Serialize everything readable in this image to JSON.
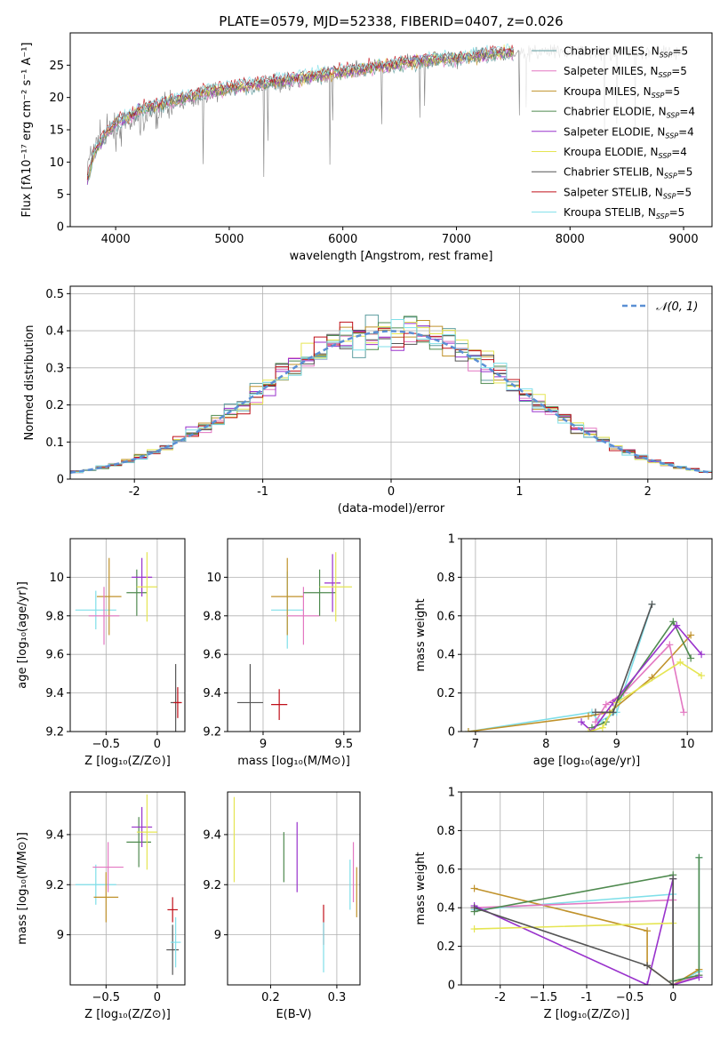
{
  "figure_title": "PLATE=0579, MJD=52338, FIBERID=0407, z=0.026",
  "colors": {
    "series": [
      "#5f9ea0",
      "#e377c2",
      "#c0922b",
      "#4f8a4f",
      "#9932cc",
      "#e5e552",
      "#555555",
      "#c0101a",
      "#7fdfe9"
    ],
    "nd_line": "#5a8fd4",
    "grid": "#b0b0b0"
  },
  "spectrum_legend": [
    {
      "name": "Chabrier MILES",
      "nssp": "5"
    },
    {
      "name": "Salpeter MILES",
      "nssp": "5"
    },
    {
      "name": "Kroupa MILES",
      "nssp": "5"
    },
    {
      "name": "Chabrier ELODIE",
      "nssp": "4"
    },
    {
      "name": "Salpeter ELODIE",
      "nssp": "4"
    },
    {
      "name": "Kroupa ELODIE",
      "nssp": "4"
    },
    {
      "name": "Chabrier STELIB",
      "nssp": "5"
    },
    {
      "name": "Salpeter STELIB",
      "nssp": "5"
    },
    {
      "name": "Kroupa STELIB",
      "nssp": "5"
    }
  ],
  "legend_nssp_prefix": "N",
  "legend_nssp_sub": "SSP",
  "hist_legend_label": "𝒩(0, 1)",
  "chart_data": [
    {
      "id": "spectrum",
      "type": "line",
      "xlabel": "wavelength [Angstrom, rest frame]",
      "ylabel": "Flux [fλ10⁻¹⁷ erg cm⁻² s⁻¹ A⁻¹]",
      "xlim": [
        3600,
        9250
      ],
      "ylim": [
        0,
        30
      ],
      "xticks": [
        4000,
        5000,
        6000,
        7000,
        8000,
        9000
      ],
      "yticks": [
        0,
        5,
        10,
        15,
        20,
        25
      ],
      "data_x": [
        3750,
        3800,
        3900,
        4000,
        4100,
        4200,
        4300,
        4400,
        4500,
        4600,
        4700,
        4800,
        5000,
        5200,
        5400,
        5600,
        5800,
        6000,
        6200,
        6400,
        6600,
        6800,
        7000,
        7200,
        7400,
        7600
      ],
      "data_y": [
        9,
        12,
        14,
        15,
        16,
        16.5,
        17,
        18,
        19,
        19.5,
        20,
        20.5,
        21,
        21.5,
        22,
        22.5,
        23,
        24,
        24.5,
        25,
        25.5,
        26,
        26,
        26.5,
        27,
        27
      ],
      "model_x_max": 7500,
      "model_y": [
        7,
        11,
        14,
        16,
        17,
        18,
        18.5,
        19,
        19.5,
        20,
        20.5,
        21,
        21.5,
        22,
        22.5,
        23,
        23.5,
        24,
        24.5,
        25,
        25.5,
        26,
        26,
        26.5,
        27,
        27
      ]
    },
    {
      "id": "residual_hist",
      "type": "bar",
      "xlabel": "(data-model)/error",
      "ylabel": "Normed distribution",
      "xlim": [
        -2.5,
        2.5
      ],
      "ylim": [
        0,
        0.52
      ],
      "xticks": [
        -2,
        -1,
        0,
        1,
        2
      ],
      "yticks": [
        0.0,
        0.1,
        0.2,
        0.3,
        0.4,
        0.5
      ]
    },
    {
      "id": "z_vs_age",
      "type": "scatter",
      "xlabel": "Z [log₁₀(Z/Z⊙)]",
      "ylabel": "age [log₁₀(age/yr)]",
      "xlim": [
        -0.85,
        0.27
      ],
      "ylim": [
        9.2,
        10.2
      ],
      "xticks": [
        -0.5,
        0.0
      ],
      "yticks": [
        9.2,
        9.4,
        9.6,
        9.8,
        10.0
      ],
      "points": [
        {
          "x": -0.6,
          "y": 9.83,
          "ex": 0.2,
          "ey": 0.1,
          "c": 8
        },
        {
          "x": -0.47,
          "y": 9.9,
          "ex": 0.12,
          "ey": 0.2,
          "c": 2
        },
        {
          "x": -0.52,
          "y": 9.8,
          "ex": 0.15,
          "ey": 0.15,
          "c": 1
        },
        {
          "x": -0.2,
          "y": 9.92,
          "ex": 0.1,
          "ey": 0.12,
          "c": 3
        },
        {
          "x": -0.15,
          "y": 10.0,
          "ex": 0.1,
          "ey": 0.1,
          "c": 4
        },
        {
          "x": -0.1,
          "y": 9.95,
          "ex": 0.1,
          "ey": 0.18,
          "c": 5
        },
        {
          "x": 0.18,
          "y": 9.35,
          "ex": 0.05,
          "ey": 0.2,
          "c": 6
        },
        {
          "x": 0.2,
          "y": 9.35,
          "ex": 0.04,
          "ey": 0.08,
          "c": 7
        }
      ]
    },
    {
      "id": "mass_vs_age",
      "type": "scatter",
      "xlabel": "mass [log₁₀(M/M⊙)]",
      "ylabel": "",
      "xlim": [
        8.78,
        9.6
      ],
      "ylim": [
        9.2,
        10.2
      ],
      "xticks": [
        9.0,
        9.5
      ],
      "yticks": [
        9.2,
        9.4,
        9.6,
        9.8,
        10.0
      ],
      "points": [
        {
          "x": 9.15,
          "y": 9.83,
          "ex": 0.1,
          "ey": 0.2,
          "c": 8
        },
        {
          "x": 9.15,
          "y": 9.9,
          "ex": 0.1,
          "ey": 0.2,
          "c": 2
        },
        {
          "x": 9.25,
          "y": 9.8,
          "ex": 0.1,
          "ey": 0.15,
          "c": 1
        },
        {
          "x": 9.35,
          "y": 9.92,
          "ex": 0.1,
          "ey": 0.12,
          "c": 3
        },
        {
          "x": 9.43,
          "y": 9.97,
          "ex": 0.05,
          "ey": 0.15,
          "c": 4
        },
        {
          "x": 9.45,
          "y": 9.95,
          "ex": 0.1,
          "ey": 0.18,
          "c": 5
        },
        {
          "x": 8.92,
          "y": 9.35,
          "ex": 0.08,
          "ey": 0.2,
          "c": 6
        },
        {
          "x": 9.1,
          "y": 9.34,
          "ex": 0.05,
          "ey": 0.08,
          "c": 7
        }
      ]
    },
    {
      "id": "weights_vs_age",
      "type": "line",
      "xlabel": "age [log₁₀(age/yr)]",
      "ylabel": "mass weight",
      "xlim": [
        6.8,
        10.35
      ],
      "ylim": [
        0,
        1
      ],
      "xticks": [
        7,
        8,
        9,
        10
      ],
      "yticks": [
        0.0,
        0.2,
        0.4,
        0.6,
        0.8,
        1.0
      ],
      "series": [
        {
          "c": 8,
          "x": [
            6.9,
            8.65,
            8.75,
            9.0,
            9.5
          ],
          "y": [
            0.0,
            0.1,
            0.05,
            0.1,
            0.66
          ]
        },
        {
          "c": 2,
          "x": [
            6.9,
            8.6,
            8.9,
            9.5,
            10.05
          ],
          "y": [
            0.0,
            0.08,
            0.1,
            0.28,
            0.5
          ]
        },
        {
          "c": 1,
          "x": [
            8.7,
            8.85,
            9.1,
            9.75,
            9.95
          ],
          "y": [
            0.05,
            0.14,
            0.2,
            0.45,
            0.1
          ]
        },
        {
          "c": 3,
          "x": [
            8.65,
            8.85,
            9.0,
            9.8,
            10.05
          ],
          "y": [
            0.02,
            0.05,
            0.15,
            0.57,
            0.38
          ]
        },
        {
          "c": 4,
          "x": [
            8.5,
            8.65,
            8.95,
            9.85,
            10.2
          ],
          "y": [
            0.05,
            0.0,
            0.15,
            0.55,
            0.4
          ]
        },
        {
          "c": 5,
          "x": [
            8.6,
            8.8,
            9.0,
            9.9,
            10.2
          ],
          "y": [
            0.0,
            0.02,
            0.15,
            0.36,
            0.29
          ]
        },
        {
          "c": 6,
          "x": [
            8.7,
            8.95,
            9.5
          ],
          "y": [
            0.1,
            0.1,
            0.66
          ]
        }
      ]
    },
    {
      "id": "z_vs_mass",
      "type": "scatter",
      "xlabel": "Z [log₁₀(Z/Z⊙)]",
      "ylabel": "mass [log₁₀(M/M⊙)]",
      "xlim": [
        -0.85,
        0.27
      ],
      "ylim": [
        8.8,
        9.57
      ],
      "xticks": [
        -0.5,
        0.0
      ],
      "yticks": [
        9.0,
        9.2,
        9.4
      ],
      "points": [
        {
          "x": -0.6,
          "y": 9.2,
          "ex": 0.2,
          "ey": 0.08,
          "c": 8
        },
        {
          "x": -0.5,
          "y": 9.15,
          "ex": 0.12,
          "ey": 0.1,
          "c": 2
        },
        {
          "x": -0.48,
          "y": 9.27,
          "ex": 0.15,
          "ey": 0.1,
          "c": 1
        },
        {
          "x": -0.18,
          "y": 9.37,
          "ex": 0.12,
          "ey": 0.1,
          "c": 3
        },
        {
          "x": -0.15,
          "y": 9.43,
          "ex": 0.1,
          "ey": 0.08,
          "c": 4
        },
        {
          "x": -0.1,
          "y": 9.41,
          "ex": 0.1,
          "ey": 0.15,
          "c": 5
        },
        {
          "x": 0.15,
          "y": 8.94,
          "ex": 0.06,
          "ey": 0.1,
          "c": 6
        },
        {
          "x": 0.15,
          "y": 9.1,
          "ex": 0.05,
          "ey": 0.05,
          "c": 7
        },
        {
          "x": 0.18,
          "y": 8.97,
          "ex": 0.05,
          "ey": 0.1,
          "c": 8
        }
      ]
    },
    {
      "id": "ebv_vs_mass",
      "type": "scatter",
      "xlabel": "E(B-V)",
      "ylabel": "",
      "xlim": [
        0.135,
        0.335
      ],
      "ylim": [
        8.8,
        9.57
      ],
      "xticks": [
        0.2,
        0.3
      ],
      "yticks": [
        9.0,
        9.2,
        9.4
      ],
      "points": [
        {
          "x": 0.145,
          "y": 9.38,
          "ey": 0.17,
          "c": 5
        },
        {
          "x": 0.22,
          "y": 9.31,
          "ey": 0.1,
          "c": 3
        },
        {
          "x": 0.24,
          "y": 9.31,
          "ey": 0.14,
          "c": 4
        },
        {
          "x": 0.28,
          "y": 9.04,
          "ey": 0.08,
          "c": 7
        },
        {
          "x": 0.28,
          "y": 8.95,
          "ey": 0.1,
          "c": 8
        },
        {
          "x": 0.32,
          "y": 9.2,
          "ey": 0.1,
          "c": 8
        },
        {
          "x": 0.325,
          "y": 9.25,
          "ey": 0.12,
          "c": 1
        },
        {
          "x": 0.33,
          "y": 9.17,
          "ey": 0.1,
          "c": 2
        }
      ]
    },
    {
      "id": "weights_vs_z",
      "type": "line",
      "xlabel": "Z [log₁₀(Z/Z⊙)]",
      "ylabel": "mass weight",
      "xlim": [
        -2.45,
        0.45
      ],
      "ylim": [
        0,
        1
      ],
      "xticks": [
        -2.0,
        -1.5,
        -1.0,
        -0.5,
        0.0
      ],
      "yticks": [
        0.0,
        0.2,
        0.4,
        0.6,
        0.8,
        1.0
      ],
      "series": [
        {
          "c": 8,
          "x": [
            -2.3,
            0.0,
            0.0,
            0.3,
            0.3
          ],
          "y": [
            0.39,
            0.47,
            0.0,
            0.07,
            0.66
          ]
        },
        {
          "c": 2,
          "x": [
            -2.3,
            -0.3,
            -0.3,
            0.0,
            0.3
          ],
          "y": [
            0.5,
            0.28,
            0.1,
            0.0,
            0.08
          ]
        },
        {
          "c": 1,
          "x": [
            -2.3,
            0.0,
            0.0,
            0.3
          ],
          "y": [
            0.4,
            0.44,
            0.0,
            0.05
          ]
        },
        {
          "c": 3,
          "x": [
            -2.3,
            0.0,
            0.0,
            0.3,
            0.3
          ],
          "y": [
            0.38,
            0.57,
            0.02,
            0.05,
            0.66
          ]
        },
        {
          "c": 4,
          "x": [
            -2.3,
            -0.3,
            0.0,
            0.0,
            0.3
          ],
          "y": [
            0.41,
            0.0,
            0.55,
            0.0,
            0.04
          ]
        },
        {
          "c": 5,
          "x": [
            -2.3,
            0.0,
            0.0
          ],
          "y": [
            0.29,
            0.32,
            0.0
          ]
        },
        {
          "c": 6,
          "x": [
            -2.3,
            -0.3,
            0.0,
            0.0
          ],
          "y": [
            0.4,
            0.1,
            0.0,
            0.55
          ]
        }
      ]
    }
  ]
}
